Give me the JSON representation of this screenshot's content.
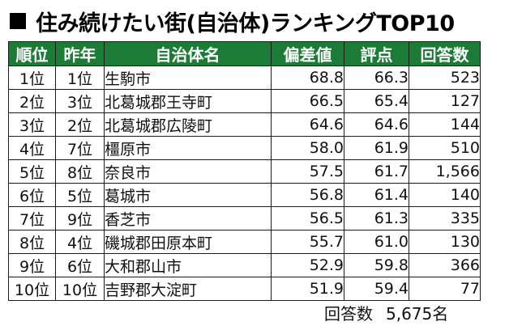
{
  "title": "住み続けたい街(自治体)ランキングTOP10",
  "table": {
    "headers": [
      "順位",
      "昨年",
      "自治体名",
      "偏差値",
      "評点",
      "回答数"
    ],
    "rows": [
      {
        "rank": "1位",
        "last": "1位",
        "name": "生駒市",
        "score": "68.8",
        "rating": "66.3",
        "count": "523"
      },
      {
        "rank": "2位",
        "last": "3位",
        "name": "北葛城郡王寺町",
        "score": "66.5",
        "rating": "65.4",
        "count": "127"
      },
      {
        "rank": "3位",
        "last": "2位",
        "name": "北葛城郡広陵町",
        "score": "64.6",
        "rating": "64.6",
        "count": "144"
      },
      {
        "rank": "4位",
        "last": "7位",
        "name": "橿原市",
        "score": "58.0",
        "rating": "61.9",
        "count": "510"
      },
      {
        "rank": "5位",
        "last": "8位",
        "name": "奈良市",
        "score": "57.5",
        "rating": "61.7",
        "count": "1,566"
      },
      {
        "rank": "6位",
        "last": "5位",
        "name": "葛城市",
        "score": "56.8",
        "rating": "61.4",
        "count": "140"
      },
      {
        "rank": "7位",
        "last": "9位",
        "name": "香芝市",
        "score": "56.5",
        "rating": "61.3",
        "count": "335"
      },
      {
        "rank": "8位",
        "last": "4位",
        "name": "磯城郡田原本町",
        "score": "55.7",
        "rating": "61.0",
        "count": "130"
      },
      {
        "rank": "9位",
        "last": "6位",
        "name": "大和郡山市",
        "score": "52.9",
        "rating": "59.8",
        "count": "366"
      },
      {
        "rank": "10位",
        "last": "10位",
        "name": "吉野郡大淀町",
        "score": "51.9",
        "rating": "59.4",
        "count": "77"
      }
    ]
  },
  "footer": {
    "label": "回答数",
    "value": "5,675名"
  },
  "colors": {
    "header_bg": "#1b7d35",
    "header_text": "#ffffff"
  }
}
